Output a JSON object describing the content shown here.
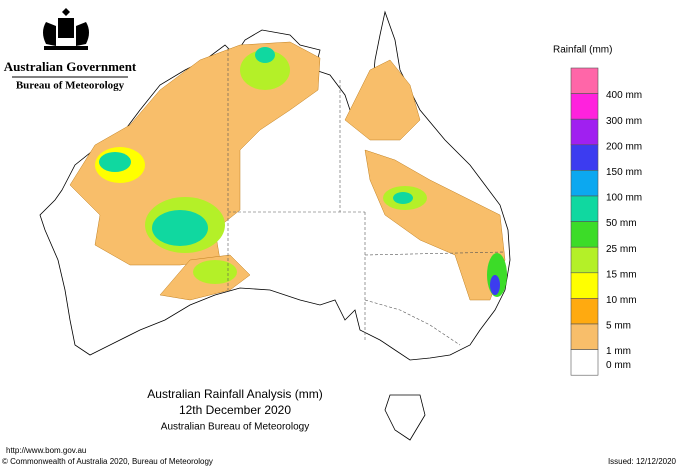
{
  "header": {
    "government": "Australian Government",
    "agency": "Bureau of Meteorology"
  },
  "legend": {
    "title": "Rainfall (mm)",
    "items": [
      {
        "label": "400 mm",
        "color": "#ff66a8"
      },
      {
        "label": "300 mm",
        "color": "#ff22dd"
      },
      {
        "label": "200 mm",
        "color": "#a020f0"
      },
      {
        "label": "150 mm",
        "color": "#3c3cf0"
      },
      {
        "label": "100 mm",
        "color": "#0ca8f0"
      },
      {
        "label": "50 mm",
        "color": "#10d8a0"
      },
      {
        "label": "25 mm",
        "color": "#3cdc28"
      },
      {
        "label": "15 mm",
        "color": "#b4f028"
      },
      {
        "label": "10 mm",
        "color": "#ffff00"
      },
      {
        "label": "5 mm",
        "color": "#ffaa10"
      },
      {
        "label": "1 mm",
        "color": "#f8be6a"
      },
      {
        "label": "0 mm",
        "color": "#ffffff"
      }
    ]
  },
  "map": {
    "title": "Australian Rainfall Analysis (mm)",
    "date": "12th December 2020",
    "source": "Australian Bureau of Meteorology"
  },
  "footer": {
    "url": "http://www.bom.gov.au",
    "copyright": "© Commonwealth of Australia 2020, Bureau of Meteorology",
    "issued": "Issued: 12/12/2020"
  }
}
